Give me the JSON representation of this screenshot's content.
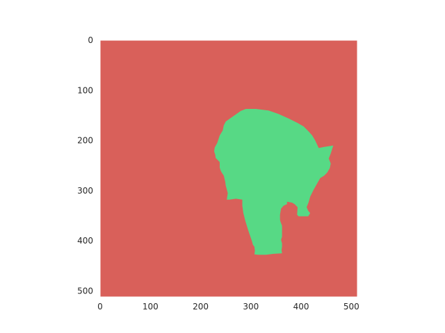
{
  "chart_data": {
    "type": "heatmap",
    "title": "",
    "xlabel": "",
    "ylabel": "",
    "xlim": [
      0,
      512
    ],
    "ylim": [
      512,
      0
    ],
    "y_inverted": true,
    "grid": false,
    "x_ticks": [
      0,
      100,
      200,
      300,
      400,
      500
    ],
    "y_ticks": [
      0,
      100,
      200,
      300,
      400,
      500
    ],
    "x_tick_labels": [
      "0",
      "100",
      "200",
      "300",
      "400",
      "500"
    ],
    "y_tick_labels": [
      "0",
      "100",
      "200",
      "300",
      "400",
      "500"
    ],
    "colors": {
      "background": "#d9605a",
      "foreground": "#57d985"
    },
    "classes": [
      {
        "value": 0,
        "color": "#d9605a"
      },
      {
        "value": 1,
        "color": "#57d985"
      }
    ],
    "foreground_region": [
      [
        290,
        137
      ],
      [
        310,
        137
      ],
      [
        335,
        140
      ],
      [
        355,
        147
      ],
      [
        375,
        156
      ],
      [
        393,
        165
      ],
      [
        405,
        172
      ],
      [
        415,
        182
      ],
      [
        422,
        190
      ],
      [
        428,
        200
      ],
      [
        435,
        215
      ],
      [
        445,
        213
      ],
      [
        464,
        210
      ],
      [
        459,
        226
      ],
      [
        455,
        236
      ],
      [
        459,
        246
      ],
      [
        457,
        255
      ],
      [
        452,
        264
      ],
      [
        446,
        270
      ],
      [
        438,
        275
      ],
      [
        425,
        298
      ],
      [
        418,
        312
      ],
      [
        415,
        323
      ],
      [
        411,
        333
      ],
      [
        414,
        340
      ],
      [
        418,
        345
      ],
      [
        414,
        351
      ],
      [
        395,
        351
      ],
      [
        392,
        348
      ],
      [
        393,
        333
      ],
      [
        387,
        327
      ],
      [
        382,
        324
      ],
      [
        372,
        322
      ],
      [
        372,
        327
      ],
      [
        365,
        330
      ],
      [
        360,
        336
      ],
      [
        358,
        348
      ],
      [
        358,
        358
      ],
      [
        359,
        362
      ],
      [
        362,
        370
      ],
      [
        362,
        380
      ],
      [
        362,
        392
      ],
      [
        360,
        398
      ],
      [
        362,
        405
      ],
      [
        362,
        412
      ],
      [
        361,
        418
      ],
      [
        362,
        425
      ],
      [
        345,
        426
      ],
      [
        330,
        428
      ],
      [
        315,
        428
      ],
      [
        307,
        427
      ],
      [
        308,
        420
      ],
      [
        307,
        412
      ],
      [
        304,
        408
      ],
      [
        302,
        400
      ],
      [
        295,
        380
      ],
      [
        289,
        360
      ],
      [
        285,
        345
      ],
      [
        283,
        330
      ],
      [
        283,
        318
      ],
      [
        270,
        316
      ],
      [
        258,
        318
      ],
      [
        252,
        318
      ],
      [
        254,
        305
      ],
      [
        250,
        290
      ],
      [
        249,
        282
      ],
      [
        246,
        270
      ],
      [
        242,
        264
      ],
      [
        240,
        260
      ],
      [
        238,
        254
      ],
      [
        238,
        243
      ],
      [
        235,
        240
      ],
      [
        230,
        235
      ],
      [
        229,
        228
      ],
      [
        227,
        222
      ],
      [
        228,
        214
      ],
      [
        233,
        205
      ],
      [
        238,
        190
      ],
      [
        244,
        180
      ],
      [
        246,
        170
      ],
      [
        250,
        162
      ],
      [
        260,
        155
      ],
      [
        270,
        148
      ],
      [
        280,
        141
      ]
    ]
  }
}
